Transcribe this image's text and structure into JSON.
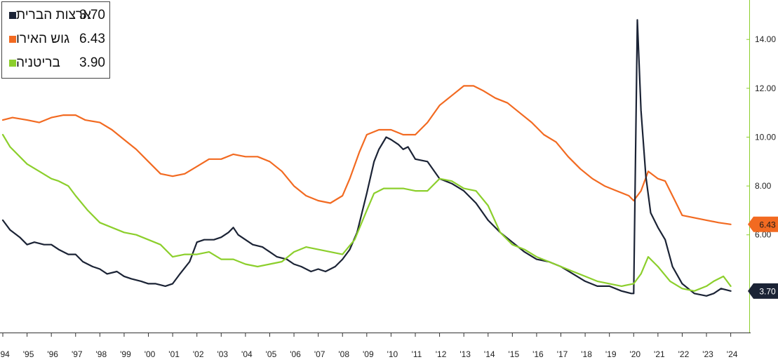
{
  "legend": {
    "items": [
      {
        "name": "ארצות הברית",
        "value": "3.70",
        "color": "#1b2335"
      },
      {
        "name": "גוש האירו",
        "value": "6.43",
        "color": "#f26a21"
      },
      {
        "name": "בריטניה",
        "value": "3.90",
        "color": "#8ccf2c"
      }
    ]
  },
  "chart_data": {
    "type": "line",
    "title": "",
    "xlabel": "",
    "ylabel": "",
    "x_range": [
      1994.0,
      2024.3
    ],
    "ylim": [
      2.0,
      15.5
    ],
    "y_ticks": [
      "6.00",
      "8.00",
      "10.00",
      "12.00",
      "14.00"
    ],
    "y_tick_values": [
      6,
      8,
      10,
      12,
      14
    ],
    "x_ticks": [
      "'94",
      "'95",
      "'96",
      "'97",
      "'98",
      "'99",
      "'00",
      "'01",
      "'02",
      "'03",
      "'04",
      "'05",
      "'06",
      "'07",
      "'08",
      "'09",
      "'10",
      "'11",
      "'12",
      "'13",
      "'14",
      "'15",
      "'16",
      "'17",
      "'18",
      "'19",
      "'20",
      "'21",
      "'22",
      "'23",
      "'24"
    ],
    "x_tick_values": [
      1994,
      1995,
      1996,
      1997,
      1998,
      1999,
      2000,
      2001,
      2002,
      2003,
      2004,
      2005,
      2006,
      2007,
      2008,
      2009,
      2010,
      2011,
      2012,
      2013,
      2014,
      2015,
      2016,
      2017,
      2018,
      2019,
      2020,
      2021,
      2022,
      2023,
      2024
    ],
    "last_value_tags": [
      {
        "label": "6.43",
        "value": 6.43,
        "bg": "#f26a21",
        "fg": "#1a1a1a"
      },
      {
        "label": "3.70",
        "value": 3.7,
        "bg": "#1b2335",
        "fg": "#ffffff"
      }
    ],
    "grid": false,
    "series": [
      {
        "name": "גוש האירו",
        "color": "#f26a21",
        "x": [
          1994.0,
          1994.4,
          1995.0,
          1995.5,
          1996.0,
          1996.5,
          1997.0,
          1997.4,
          1998.0,
          1998.5,
          1999.0,
          1999.5,
          2000.0,
          2000.5,
          2001.0,
          2001.5,
          2002.0,
          2002.5,
          2003.0,
          2003.5,
          2004.0,
          2004.5,
          2005.0,
          2005.5,
          2006.0,
          2006.5,
          2007.0,
          2007.5,
          2008.0,
          2008.3,
          2008.7,
          2009.0,
          2009.5,
          2010.0,
          2010.5,
          2011.0,
          2011.5,
          2012.0,
          2012.5,
          2013.0,
          2013.4,
          2013.8,
          2014.3,
          2014.8,
          2015.3,
          2015.8,
          2016.3,
          2016.8,
          2017.3,
          2017.8,
          2018.3,
          2018.8,
          2019.3,
          2019.8,
          2020.0,
          2020.3,
          2020.6,
          2021.0,
          2021.3,
          2021.7,
          2022.0,
          2022.5,
          2023.0,
          2023.5,
          2024.0
        ],
        "y": [
          10.7,
          10.8,
          10.7,
          10.6,
          10.8,
          10.9,
          10.9,
          10.7,
          10.6,
          10.3,
          9.9,
          9.5,
          9.0,
          8.5,
          8.4,
          8.5,
          8.8,
          9.1,
          9.1,
          9.3,
          9.2,
          9.2,
          9.0,
          8.6,
          8.0,
          7.6,
          7.4,
          7.3,
          7.6,
          8.3,
          9.4,
          10.1,
          10.3,
          10.3,
          10.1,
          10.1,
          10.6,
          11.3,
          11.7,
          12.1,
          12.1,
          11.9,
          11.6,
          11.4,
          11.0,
          10.6,
          10.1,
          9.8,
          9.2,
          8.7,
          8.3,
          8.0,
          7.8,
          7.6,
          7.4,
          7.8,
          8.6,
          8.3,
          8.2,
          7.4,
          6.8,
          6.7,
          6.6,
          6.5,
          6.43
        ]
      },
      {
        "name": "ארצות הברית",
        "color": "#1b2335",
        "x": [
          1994.0,
          1994.3,
          1994.7,
          1995.0,
          1995.3,
          1995.7,
          1996.0,
          1996.3,
          1996.7,
          1997.0,
          1997.3,
          1997.7,
          1998.0,
          1998.3,
          1998.7,
          1999.0,
          1999.3,
          1999.7,
          2000.0,
          2000.3,
          2000.7,
          2001.0,
          2001.3,
          2001.7,
          2002.0,
          2002.3,
          2002.7,
          2003.0,
          2003.3,
          2003.5,
          2003.7,
          2004.0,
          2004.3,
          2004.7,
          2005.0,
          2005.3,
          2005.7,
          2006.0,
          2006.3,
          2006.7,
          2007.0,
          2007.3,
          2007.7,
          2008.0,
          2008.3,
          2008.6,
          2009.0,
          2009.3,
          2009.5,
          2009.8,
          2010.0,
          2010.3,
          2010.5,
          2010.7,
          2011.0,
          2011.5,
          2012.0,
          2012.5,
          2013.0,
          2013.5,
          2014.0,
          2014.5,
          2015.0,
          2015.5,
          2016.0,
          2016.5,
          2017.0,
          2017.5,
          2018.0,
          2018.5,
          2019.0,
          2019.5,
          2019.9,
          2020.0,
          2020.15,
          2020.3,
          2020.5,
          2020.7,
          2021.0,
          2021.3,
          2021.6,
          2022.0,
          2022.5,
          2023.0,
          2023.3,
          2023.6,
          2024.0
        ],
        "y": [
          6.6,
          6.2,
          5.9,
          5.6,
          5.7,
          5.6,
          5.6,
          5.4,
          5.2,
          5.2,
          4.9,
          4.7,
          4.6,
          4.4,
          4.5,
          4.3,
          4.2,
          4.1,
          4.0,
          4.0,
          3.9,
          4.0,
          4.4,
          4.9,
          5.7,
          5.8,
          5.8,
          5.9,
          6.1,
          6.3,
          6.0,
          5.8,
          5.6,
          5.5,
          5.3,
          5.1,
          5.0,
          4.8,
          4.7,
          4.5,
          4.6,
          4.5,
          4.7,
          5.0,
          5.4,
          6.1,
          7.7,
          9.0,
          9.5,
          10.0,
          9.9,
          9.7,
          9.5,
          9.6,
          9.1,
          9.0,
          8.3,
          8.1,
          7.8,
          7.3,
          6.6,
          6.1,
          5.7,
          5.3,
          5.0,
          4.9,
          4.7,
          4.4,
          4.1,
          3.9,
          3.9,
          3.7,
          3.6,
          3.6,
          14.8,
          11.1,
          8.4,
          6.9,
          6.3,
          5.8,
          4.7,
          4.0,
          3.6,
          3.5,
          3.6,
          3.8,
          3.7
        ]
      },
      {
        "name": "בריטניה",
        "color": "#8ccf2c",
        "x": [
          1994.0,
          1994.3,
          1994.7,
          1995.0,
          1995.5,
          1996.0,
          1996.3,
          1996.7,
          1997.0,
          1997.5,
          1998.0,
          1998.5,
          1999.0,
          1999.5,
          2000.0,
          2000.5,
          2001.0,
          2001.5,
          2002.0,
          2002.5,
          2003.0,
          2003.5,
          2004.0,
          2004.5,
          2005.0,
          2005.5,
          2006.0,
          2006.5,
          2007.0,
          2007.5,
          2008.0,
          2008.5,
          2009.0,
          2009.3,
          2009.7,
          2010.0,
          2010.5,
          2011.0,
          2011.5,
          2012.0,
          2012.5,
          2013.0,
          2013.5,
          2014.0,
          2014.5,
          2015.0,
          2015.5,
          2016.0,
          2016.5,
          2017.0,
          2017.5,
          2018.0,
          2018.5,
          2019.0,
          2019.5,
          2020.0,
          2020.3,
          2020.6,
          2021.0,
          2021.5,
          2022.0,
          2022.5,
          2023.0,
          2023.3,
          2023.7,
          2024.0
        ],
        "y": [
          10.1,
          9.6,
          9.2,
          8.9,
          8.6,
          8.3,
          8.2,
          8.0,
          7.6,
          7.0,
          6.5,
          6.3,
          6.1,
          6.0,
          5.8,
          5.6,
          5.1,
          5.2,
          5.2,
          5.3,
          5.0,
          5.0,
          4.8,
          4.7,
          4.8,
          4.9,
          5.3,
          5.5,
          5.4,
          5.3,
          5.2,
          5.8,
          7.0,
          7.7,
          7.9,
          7.9,
          7.9,
          7.8,
          7.8,
          8.3,
          8.2,
          7.9,
          7.8,
          7.2,
          6.1,
          5.6,
          5.4,
          5.1,
          4.9,
          4.7,
          4.5,
          4.3,
          4.1,
          4.0,
          3.9,
          4.0,
          4.4,
          5.1,
          4.7,
          4.1,
          3.8,
          3.7,
          3.9,
          4.1,
          4.3,
          3.9
        ]
      }
    ]
  }
}
